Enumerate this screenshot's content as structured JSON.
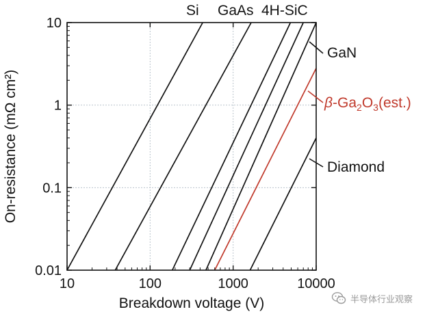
{
  "chart_data": {
    "type": "line",
    "xscale": "log",
    "yscale": "log",
    "xlim": [
      10,
      10000
    ],
    "ylim": [
      0.01,
      10
    ],
    "xlabel": "Breakdown voltage (V)",
    "ylabel": "On-resistance (mΩ cm²)",
    "xticks": [
      "10",
      "100",
      "1000",
      "10000"
    ],
    "yticks": [
      "0.01",
      "0.1",
      "1",
      "10"
    ],
    "grid": true,
    "highlight_color": "#c0392b",
    "line_color": "#111111",
    "series": [
      {
        "name": "Si",
        "x": [
          10,
          430
        ],
        "y": [
          0.01,
          10
        ],
        "color": "#111111"
      },
      {
        "name": "",
        "x": [
          38,
          1650
        ],
        "y": [
          0.01,
          10
        ],
        "color": "#111111"
      },
      {
        "name": "GaAs",
        "x": [
          185,
          4900
        ],
        "y": [
          0.01,
          10
        ],
        "color": "#111111"
      },
      {
        "name": "4H-SiC",
        "x": [
          300,
          7000
        ],
        "y": [
          0.01,
          10
        ],
        "color": "#111111"
      },
      {
        "name": "GaN",
        "x": [
          470,
          10000
        ],
        "y": [
          0.01,
          10
        ],
        "color": "#111111"
      },
      {
        "name": "β-Ga₂O₃(est.)",
        "x": [
          600,
          10000
        ],
        "y": [
          0.01,
          2.8
        ],
        "color": "#c0392b"
      },
      {
        "name": "Diamond",
        "x": [
          1600,
          10000
        ],
        "y": [
          0.01,
          0.4
        ],
        "color": "#111111"
      }
    ],
    "labels": {
      "si": "Si",
      "gaas": "GaAs",
      "sic": "4H-SiC",
      "gan": "GaN",
      "ga2o3_beta": "β",
      "ga2o3_ga": "-Ga",
      "ga2o3_sub1": "2",
      "ga2o3_o": "O",
      "ga2o3_sub2": "3",
      "ga2o3_est": "(est.)",
      "diamond": "Diamond"
    }
  },
  "watermark": {
    "text": "半导体行业观察",
    "icon": "wechat-icon"
  }
}
